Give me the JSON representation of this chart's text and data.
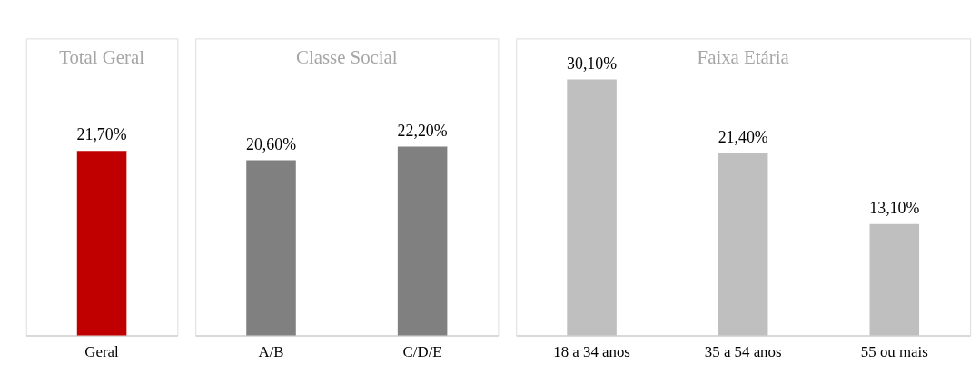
{
  "chart_data": [
    {
      "type": "bar",
      "title": "Total Geral",
      "categories": [
        "Geral"
      ],
      "values": [
        21.7
      ],
      "colors": [
        "#c00000"
      ],
      "value_labels": [
        "21,70%"
      ]
    },
    {
      "type": "bar",
      "title": "Classe Social",
      "categories": [
        "A/B",
        "C/D/E"
      ],
      "values": [
        20.6,
        22.2
      ],
      "colors": [
        "#808080",
        "#808080"
      ],
      "value_labels": [
        "20,60%",
        "22,20%"
      ]
    },
    {
      "type": "bar",
      "title": "Faixa Etária",
      "categories": [
        "18 a 34 anos",
        "35 a 54 anos",
        "55 ou mais"
      ],
      "values": [
        30.1,
        21.4,
        13.1
      ],
      "colors": [
        "#bfbfbf",
        "#bfbfbf",
        "#bfbfbf"
      ],
      "value_labels": [
        "30,10%",
        "21,40%",
        "13,10%"
      ]
    }
  ]
}
